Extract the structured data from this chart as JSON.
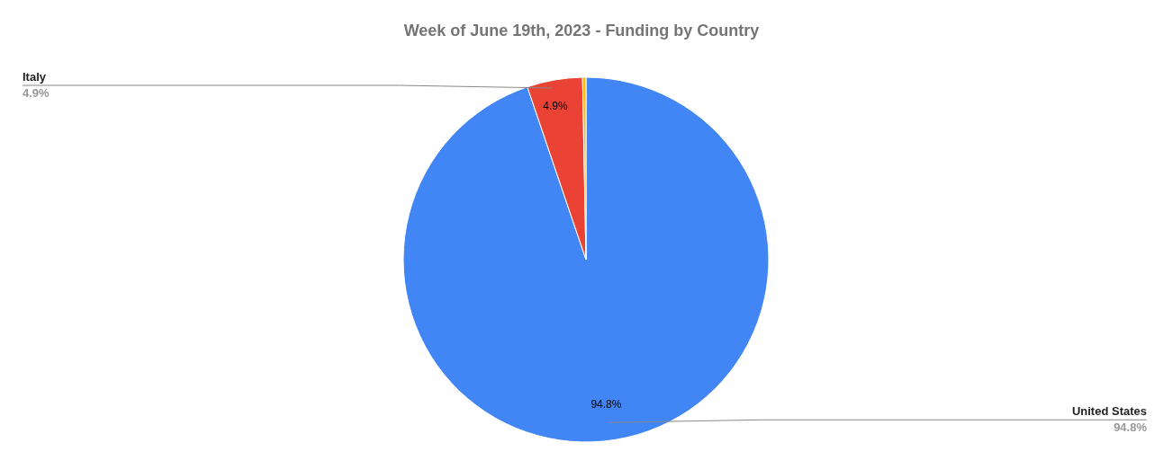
{
  "chart_data": {
    "type": "pie",
    "title": "Week of June 19th, 2023 - Funding by Country",
    "categories": [
      "United States",
      "Italy",
      null
    ],
    "values": [
      94.8,
      4.9,
      0.3
    ],
    "colors": [
      "#4285f4",
      "#ea4335",
      "#fbbc04"
    ],
    "value_labels": [
      "94.8%",
      "4.9%",
      null
    ],
    "legend": false
  }
}
